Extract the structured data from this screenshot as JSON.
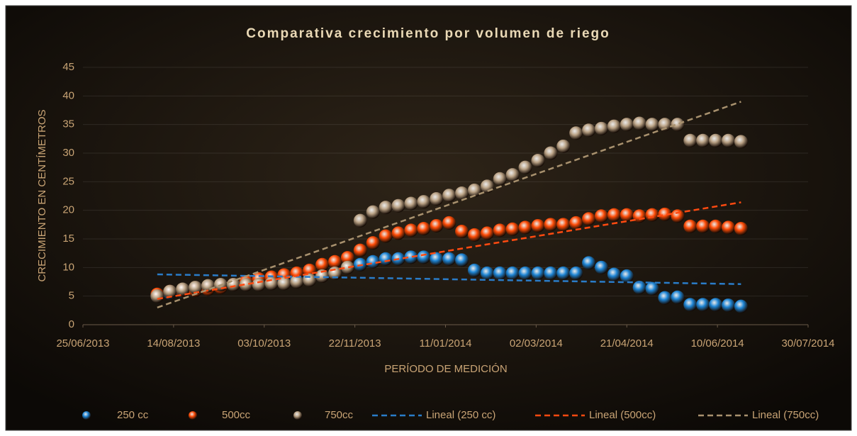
{
  "chart_data": {
    "type": "scatter",
    "title": "Comparativa crecimiento por volumen de riego",
    "x_label": "PERÍODO DE MEDICIÓN",
    "y_label": "CRECIMIENTO EN CENTÍMETROS",
    "x": [
      "05/08/2013",
      "12/08/2013",
      "19/08/2013",
      "26/08/2013",
      "02/09/2013",
      "09/09/2013",
      "16/09/2013",
      "23/09/2013",
      "30/09/2013",
      "07/10/2013",
      "14/10/2013",
      "21/10/2013",
      "28/10/2013",
      "04/11/2013",
      "11/11/2013",
      "18/11/2013",
      "25/11/2013",
      "02/12/2013",
      "09/12/2013",
      "16/12/2013",
      "23/12/2013",
      "30/12/2013",
      "06/01/2014",
      "13/01/2014",
      "20/01/2014",
      "27/01/2014",
      "03/02/2014",
      "10/02/2014",
      "17/02/2014",
      "24/02/2014",
      "03/03/2014",
      "10/03/2014",
      "17/03/2014",
      "24/03/2014",
      "31/03/2014",
      "07/04/2014",
      "14/04/2014",
      "21/04/2014",
      "28/04/2014",
      "05/05/2014",
      "12/05/2014",
      "19/05/2014",
      "26/05/2014",
      "02/06/2014",
      "09/06/2014",
      "16/06/2014",
      "23/06/2014"
    ],
    "series": [
      {
        "name": "250 cc",
        "color": "#1f86d6",
        "values": [
          5,
          5.5,
          5.8,
          6,
          6.2,
          6.5,
          7,
          7,
          7,
          7.5,
          7.5,
          8,
          8,
          8.5,
          9,
          10,
          10.5,
          11,
          11.5,
          11.5,
          11.8,
          11.8,
          11.5,
          11.5,
          11.3,
          9.5,
          9,
          9,
          9,
          9,
          9,
          9,
          9,
          9,
          10.8,
          10,
          8.8,
          8.5,
          6.5,
          6.3,
          4.7,
          4.8,
          3.5,
          3.5,
          3.5,
          3.4,
          3.2
        ]
      },
      {
        "name": "500cc",
        "color": "#ff4d08",
        "values": [
          5.3,
          5.8,
          6,
          6,
          6.2,
          6.5,
          7,
          7.5,
          8,
          8.3,
          8.7,
          9,
          9.5,
          10.5,
          11,
          11.7,
          13,
          14.3,
          15.5,
          16,
          16.5,
          16.8,
          17.3,
          17.8,
          16.3,
          15.7,
          16,
          16.5,
          16.7,
          17,
          17.3,
          17.5,
          17.5,
          17.8,
          18.5,
          19,
          19.2,
          19.2,
          19,
          19.2,
          19.3,
          19,
          17.2,
          17.2,
          17.2,
          17,
          16.8
        ]
      },
      {
        "name": "750cc",
        "color": "#b9a184",
        "values": [
          5,
          5.8,
          6.2,
          6.5,
          6.8,
          7,
          7,
          7,
          7,
          7.2,
          7.2,
          7.5,
          7.8,
          8.5,
          9,
          10,
          18.2,
          19.7,
          20.5,
          20.8,
          21.2,
          21.5,
          22,
          22.6,
          23,
          23.5,
          24.2,
          25.5,
          26.2,
          27.5,
          28.7,
          30,
          31.2,
          33.5,
          34,
          34.3,
          34.7,
          35,
          35.2,
          35,
          35,
          35,
          32.2,
          32.2,
          32.2,
          32.2,
          32
        ]
      }
    ],
    "trendlines": [
      {
        "name": "Lineal (250 cc)",
        "color": "#2a7cc8",
        "x": [
          "05/08/2013",
          "23/06/2014"
        ],
        "values": [
          8.8,
          7.1
        ]
      },
      {
        "name": "Lineal (500cc)",
        "color": "#ff4a10",
        "x": [
          "05/08/2013",
          "23/06/2014"
        ],
        "values": [
          4.5,
          21.4
        ]
      },
      {
        "name": "Lineal (750cc)",
        "color": "#a8916e",
        "x": [
          "05/08/2013",
          "23/06/2014"
        ],
        "values": [
          3,
          39
        ]
      }
    ],
    "xlim": [
      "25/06/2013",
      "30/07/2014"
    ],
    "xticks": [
      "25/06/2013",
      "14/08/2013",
      "03/10/2013",
      "22/11/2013",
      "11/01/2014",
      "02/03/2014",
      "21/04/2014",
      "10/06/2014",
      "30/07/2014"
    ],
    "ylim": [
      0,
      45
    ],
    "yticks": [
      0,
      5,
      10,
      15,
      20,
      25,
      30,
      35,
      40,
      45
    ],
    "grid": true,
    "legend": "bottom"
  }
}
